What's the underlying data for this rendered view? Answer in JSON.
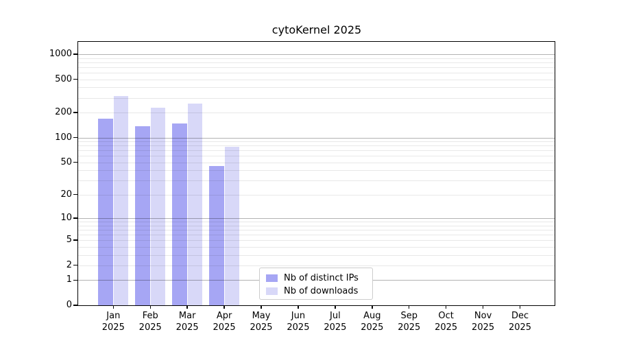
{
  "chart_data": {
    "type": "bar",
    "title": "cytoKernel 2025",
    "x_categories": [
      "Jan",
      "Feb",
      "Mar",
      "Apr",
      "May",
      "Jun",
      "Jul",
      "Aug",
      "Sep",
      "Oct",
      "Nov",
      "Dec"
    ],
    "x_year_label": "2025",
    "y_scale": "log10(value+1)",
    "ylim": [
      0,
      1000
    ],
    "y_axis_ticks": [
      1000,
      500,
      200,
      100,
      50,
      20,
      10,
      5,
      2,
      1,
      0
    ],
    "y_major_gridlines": [
      1,
      10,
      100,
      1000
    ],
    "y_minor_gridlines": [
      2,
      3,
      4,
      5,
      6,
      7,
      8,
      9,
      20,
      30,
      40,
      50,
      60,
      70,
      80,
      90,
      200,
      300,
      400,
      500,
      600,
      700,
      800,
      900
    ],
    "grid": "on",
    "series": [
      {
        "name": "Nb of distinct IPs",
        "color": "#a6a6f4",
        "values": [
          168,
          136,
          147,
          45,
          null,
          null,
          null,
          null,
          null,
          null,
          null,
          null
        ]
      },
      {
        "name": "Nb of downloads",
        "color": "#d8d8f8",
        "values": [
          315,
          230,
          256,
          78,
          null,
          null,
          null,
          null,
          null,
          null,
          null,
          null
        ]
      }
    ],
    "legend": {
      "position": "lower-center",
      "entries": [
        "Nb of distinct IPs",
        "Nb of downloads"
      ]
    }
  },
  "colors": {
    "background": "#ffffff",
    "axis": "#000000",
    "major_grid": "#b3b3b3",
    "minor_grid": "#e7e7e7",
    "legend_border": "#cccccc"
  }
}
